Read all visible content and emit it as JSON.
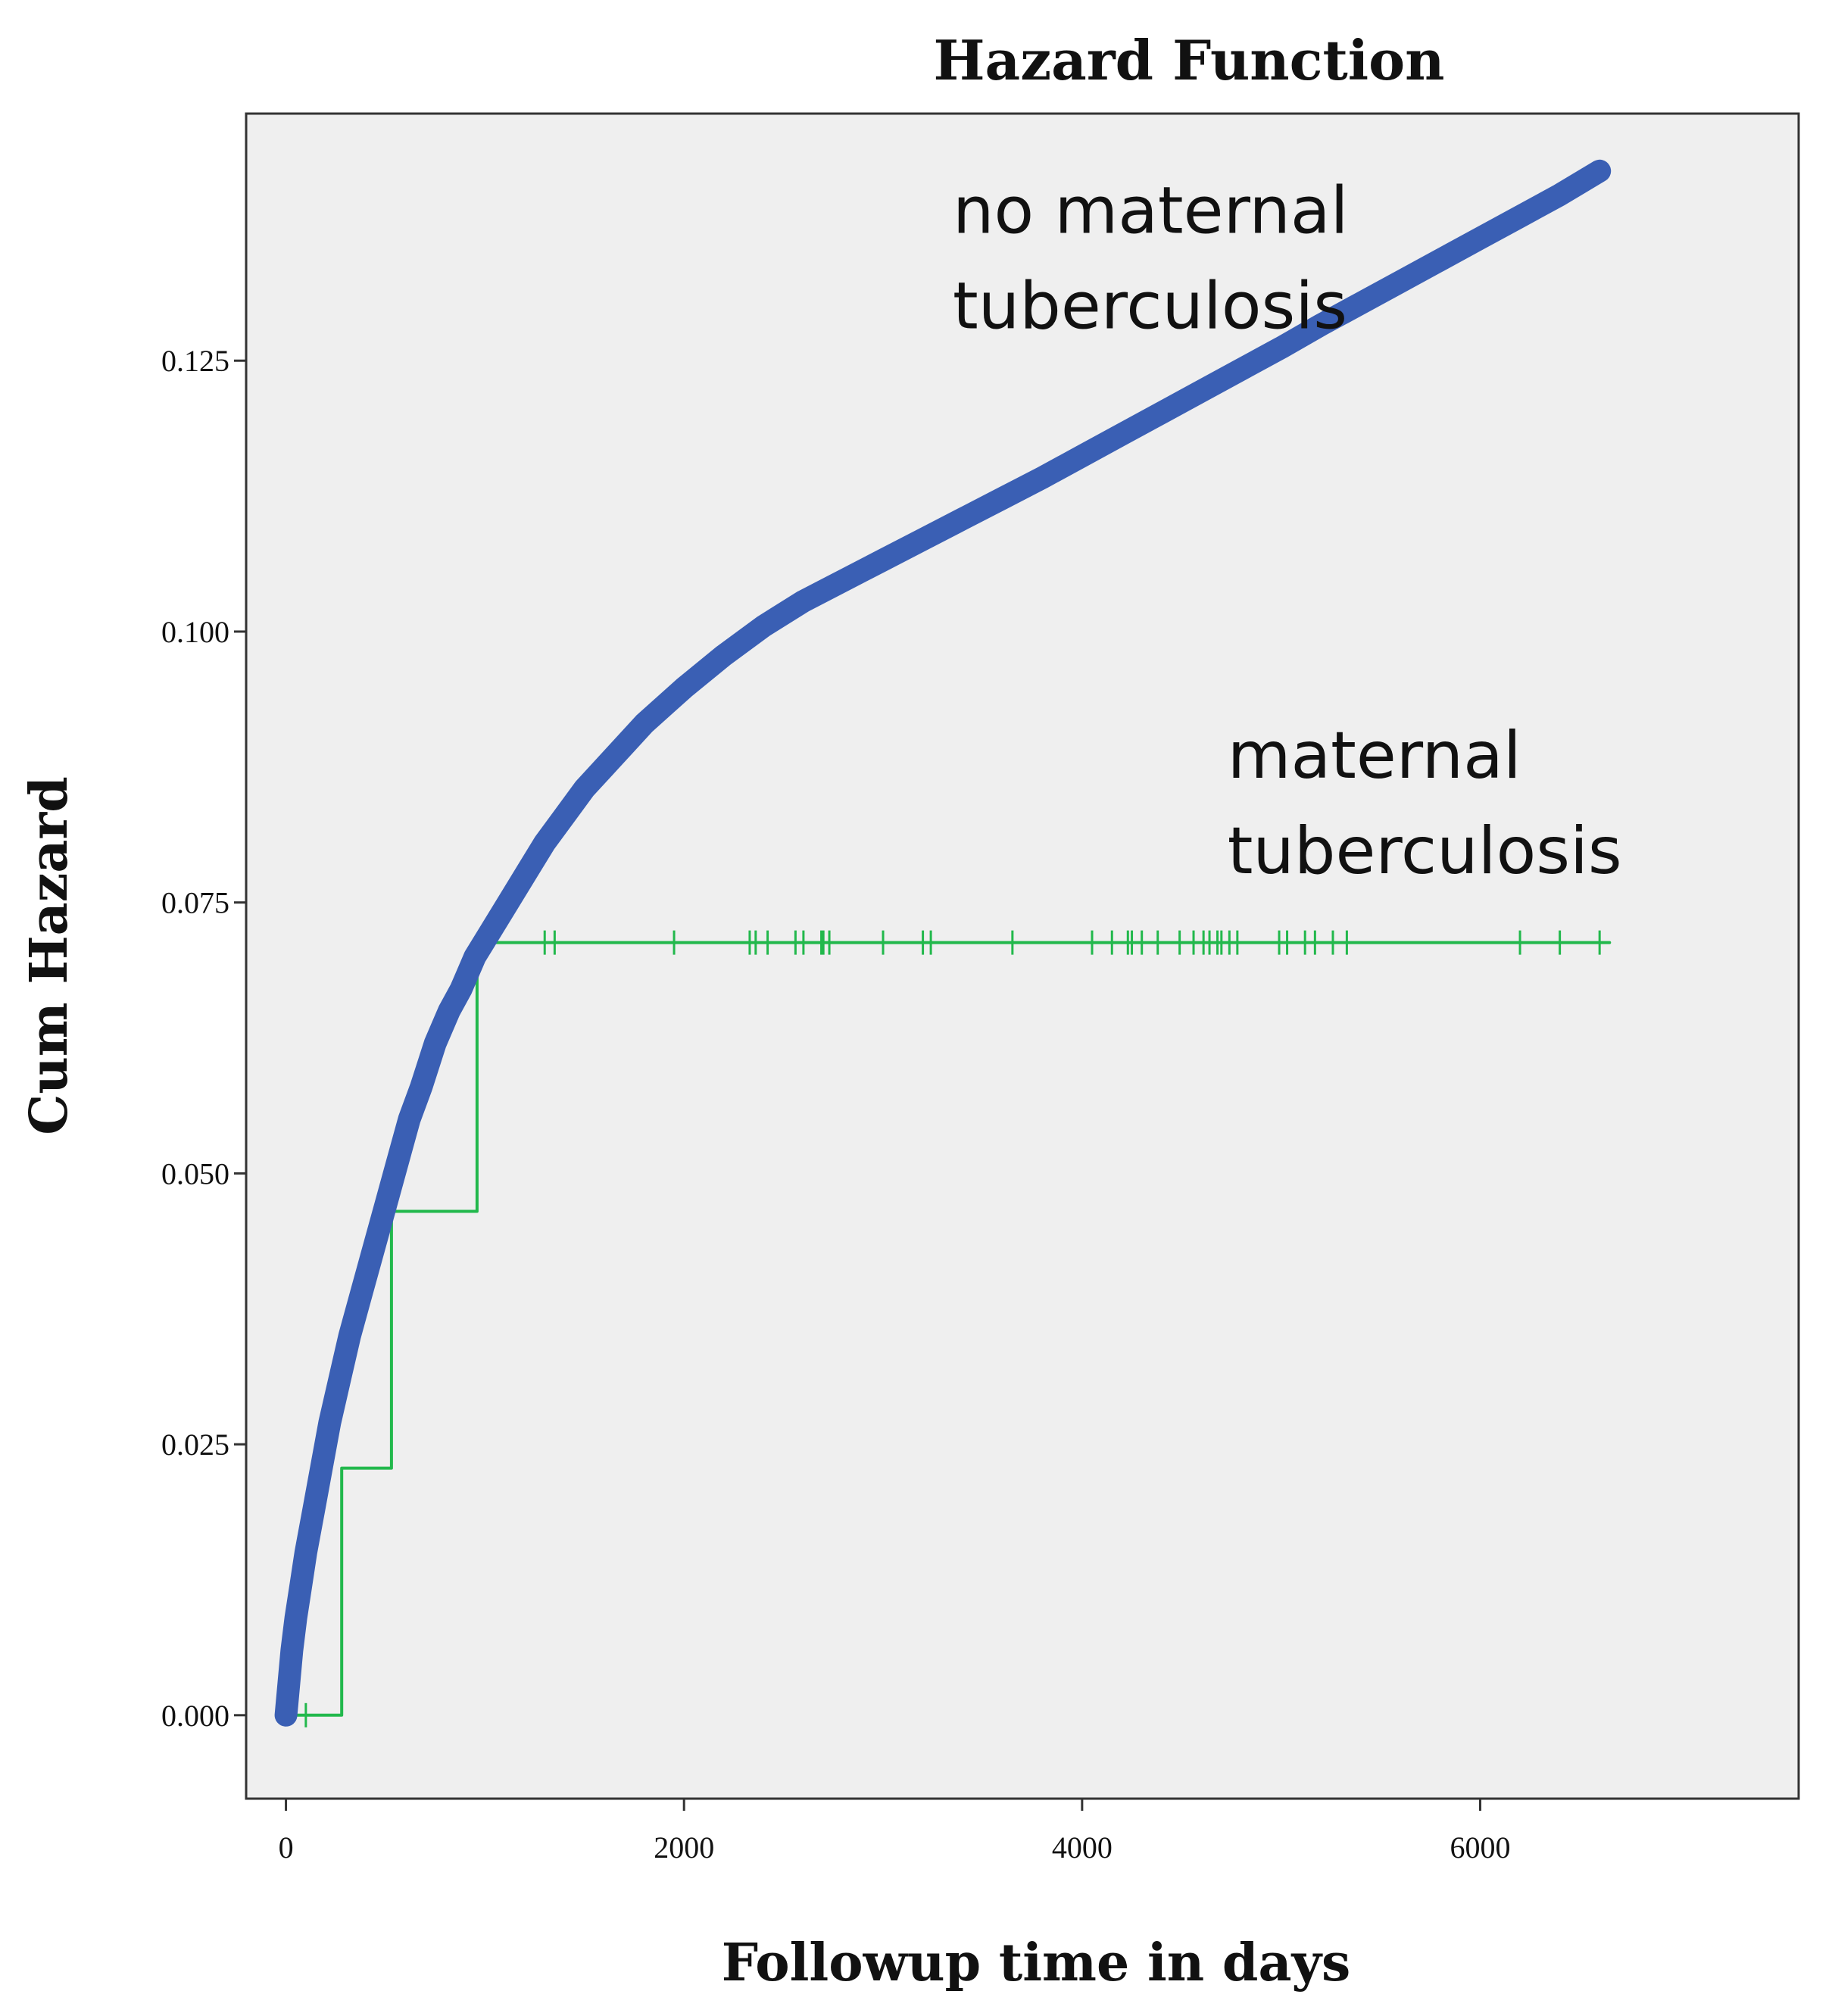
{
  "chart_data": {
    "type": "line",
    "title": "Hazard Function",
    "xlabel": "Followup time in days",
    "ylabel": "Cum Hazard",
    "xlim": [
      -200,
      7600
    ],
    "ylim": [
      -0.0077,
      0.1478
    ],
    "x_ticks": [
      0,
      2000,
      4000,
      6000
    ],
    "x_tick_labels": [
      "0",
      "2000",
      "4000",
      "6000"
    ],
    "y_ticks": [
      0.0,
      0.025,
      0.05,
      0.075,
      0.1,
      0.125
    ],
    "y_tick_labels": [
      "0.000",
      "0.025",
      "0.050",
      "0.075",
      "0.100",
      "0.125"
    ],
    "grid": false,
    "plot_background": "#efefef",
    "series": [
      {
        "name": "no maternal tuberculosis",
        "color": "#3a5fb4",
        "style": "thick",
        "x": [
          0,
          15,
          30,
          50,
          75,
          100,
          140,
          180,
          220,
          270,
          320,
          380,
          440,
          500,
          560,
          620,
          680,
          750,
          820,
          880,
          950,
          1000,
          1100,
          1200,
          1300,
          1400,
          1500,
          1600,
          1700,
          1800,
          2000,
          2200,
          2400,
          2600,
          2800,
          3000,
          3200,
          3400,
          3600,
          3800,
          4000,
          4200,
          4400,
          4600,
          4800,
          5000,
          5200,
          5400,
          5600,
          5800,
          6000,
          6200,
          6400,
          6600
        ],
        "y": [
          0.0,
          0.003,
          0.006,
          0.009,
          0.012,
          0.015,
          0.019,
          0.023,
          0.027,
          0.031,
          0.035,
          0.039,
          0.043,
          0.047,
          0.051,
          0.055,
          0.058,
          0.062,
          0.065,
          0.067,
          0.07,
          0.0715,
          0.0745,
          0.0775,
          0.0805,
          0.083,
          0.0855,
          0.0875,
          0.0895,
          0.0915,
          0.0948,
          0.0978,
          0.1005,
          0.1028,
          0.1047,
          0.1066,
          0.1085,
          0.1104,
          0.1123,
          0.1142,
          0.1162,
          0.1182,
          0.1202,
          0.1222,
          0.1242,
          0.1262,
          0.1283,
          0.1303,
          0.1323,
          0.1343,
          0.1363,
          0.1383,
          0.1403,
          0.1425
        ]
      },
      {
        "name": "maternal tuberculosis",
        "color": "#22b84c",
        "style": "step",
        "x": [
          0,
          280,
          280,
          530,
          530,
          960,
          960,
          6650
        ],
        "y": [
          0.0,
          0.0,
          0.0228,
          0.0228,
          0.0465,
          0.0465,
          0.0713,
          0.0713
        ],
        "censor_marks_x": [
          100,
          1300,
          1350,
          1950,
          2330,
          2360,
          2420,
          2560,
          2600,
          2690,
          2700,
          2730,
          3000,
          3200,
          3240,
          3650,
          4050,
          4150,
          4230,
          4250,
          4300,
          4380,
          4490,
          4560,
          4610,
          4640,
          4680,
          4700,
          4740,
          4780,
          4990,
          5030,
          5120,
          5170,
          5260,
          5330,
          6200,
          6400,
          6600
        ],
        "censor_marks_y": [
          0.0,
          0.0713,
          0.0713,
          0.0713,
          0.0713,
          0.0713,
          0.0713,
          0.0713,
          0.0713,
          0.0713,
          0.0713,
          0.0713,
          0.0713,
          0.0713,
          0.0713,
          0.0713,
          0.0713,
          0.0713,
          0.0713,
          0.0713,
          0.0713,
          0.0713,
          0.0713,
          0.0713,
          0.0713,
          0.0713,
          0.0713,
          0.0713,
          0.0713,
          0.0713,
          0.0713,
          0.0713,
          0.0713,
          0.0713,
          0.0713,
          0.0713,
          0.0713,
          0.0713,
          0.0713
        ]
      }
    ],
    "annotations": [
      {
        "lines": [
          "no maternal",
          "tuberculosis"
        ],
        "x": 3350,
        "y": 0.1368
      },
      {
        "lines": [
          "maternal",
          "tuberculosis"
        ],
        "x": 4730,
        "y": 0.0865
      }
    ]
  }
}
